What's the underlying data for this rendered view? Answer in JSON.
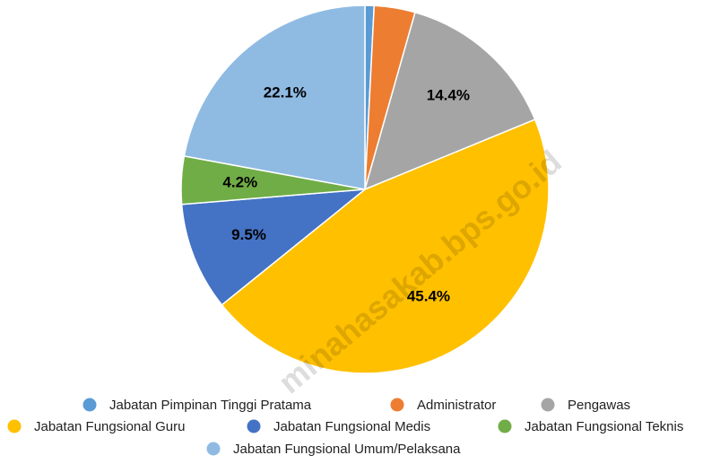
{
  "chart_data": {
    "type": "pie",
    "categories": [
      "Jabatan Pimpinan Tinggi Pratama",
      "Administrator",
      "Pengawas",
      "Jabatan Fungsional Guru",
      "Jabatan Fungsional Medis",
      "Jabatan Fungsional Teknis",
      "Jabatan Fungsional Umum/Pelaksana"
    ],
    "values": [
      0.8,
      3.6,
      14.4,
      45.4,
      9.5,
      4.2,
      22.1
    ],
    "value_labels": [
      null,
      null,
      "14.4%",
      "45.4%",
      "9.5%",
      "4.2%",
      "22.1%"
    ],
    "colors": [
      "#5b9bd5",
      "#ed7d31",
      "#a5a5a5",
      "#ffc000",
      "#4472c4",
      "#70ad47",
      "#8fbbe3"
    ],
    "legend": "bottom",
    "watermark": "minahasakab.bps.go.id"
  }
}
